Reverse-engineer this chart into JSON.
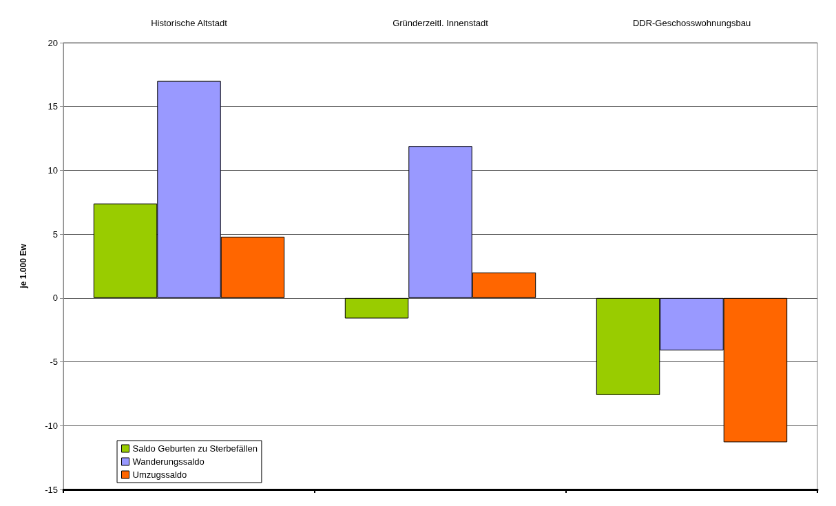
{
  "chart_data": {
    "type": "bar",
    "categories": [
      "Historische Altstadt",
      "Gründerzeitl. Innenstadt",
      "DDR-Geschosswohnungsbau"
    ],
    "ylabel": "je 1.000 Ew",
    "series": [
      {
        "name": "Saldo Geburten zu Sterbefällen",
        "color": "#99cc00",
        "values": [
          7.4,
          -1.6,
          -7.6
        ]
      },
      {
        "name": "Wanderungssaldo",
        "color": "#9999ff",
        "values": [
          17.0,
          11.9,
          -4.1
        ]
      },
      {
        "name": "Umzugssaldo",
        "color": "#ff6600",
        "values": [
          4.8,
          2.0,
          -11.3
        ]
      }
    ],
    "ylim": [
      -15,
      20
    ],
    "yticks": [
      -15,
      -10,
      -5,
      0,
      5,
      10,
      15,
      20
    ],
    "grid": "y",
    "legend": "bottom left"
  }
}
